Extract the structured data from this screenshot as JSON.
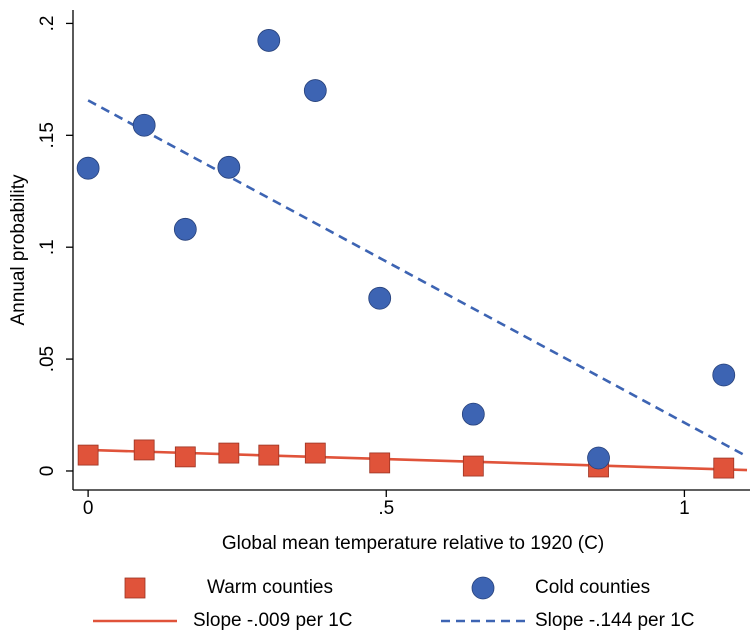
{
  "chart_data": {
    "type": "scatter",
    "x_label": "Global mean temperature relative to 1920 (C)",
    "y_label": "Annual probability",
    "xlim": [
      -0.022,
      1.11
    ],
    "ylim": [
      -0.0085,
      0.206
    ],
    "xticks": [
      0,
      {
        "value": 0.5,
        "label": ".5"
      },
      1
    ],
    "yticks": [
      0,
      {
        "value": 0.05,
        "label": ".05"
      },
      {
        "value": 0.1,
        "label": ".1"
      },
      {
        "value": 0.15,
        "label": ".15"
      },
      {
        "value": 0.2,
        "label": ".2"
      }
    ],
    "grid": false,
    "series": [
      {
        "name": "Warm counties",
        "color": "#e0533a",
        "style": "square",
        "x": [
          0,
          0.094,
          0.163,
          0.236,
          0.303,
          0.381,
          0.489,
          0.646,
          0.856,
          1.066
        ],
        "values": [
          0.0071,
          0.0094,
          0.0063,
          0.008,
          0.0071,
          0.008,
          0.0036,
          0.0022,
          0.0018,
          0.0013
        ]
      },
      {
        "name": "Cold counties",
        "color": "#3d64b3",
        "style": "circle",
        "x": [
          0,
          0.094,
          0.163,
          0.236,
          0.303,
          0.381,
          0.489,
          0.646,
          0.856,
          1.066
        ],
        "values": [
          0.1353,
          0.1545,
          0.108,
          0.1357,
          0.1924,
          0.17,
          0.0772,
          0.0254,
          0.0058,
          0.0429
        ]
      },
      {
        "name": "Slope -.009 per 1C",
        "color": "#e0533a",
        "style": "solid",
        "x": [
          0,
          1.105
        ],
        "values": [
          0.0094,
          0.0004
        ]
      },
      {
        "name": "Slope -.144 per 1C",
        "color": "#3d64b3",
        "style": "dashed",
        "x": [
          0,
          1.1
        ],
        "values": [
          0.1656,
          0.0072
        ]
      }
    ]
  }
}
